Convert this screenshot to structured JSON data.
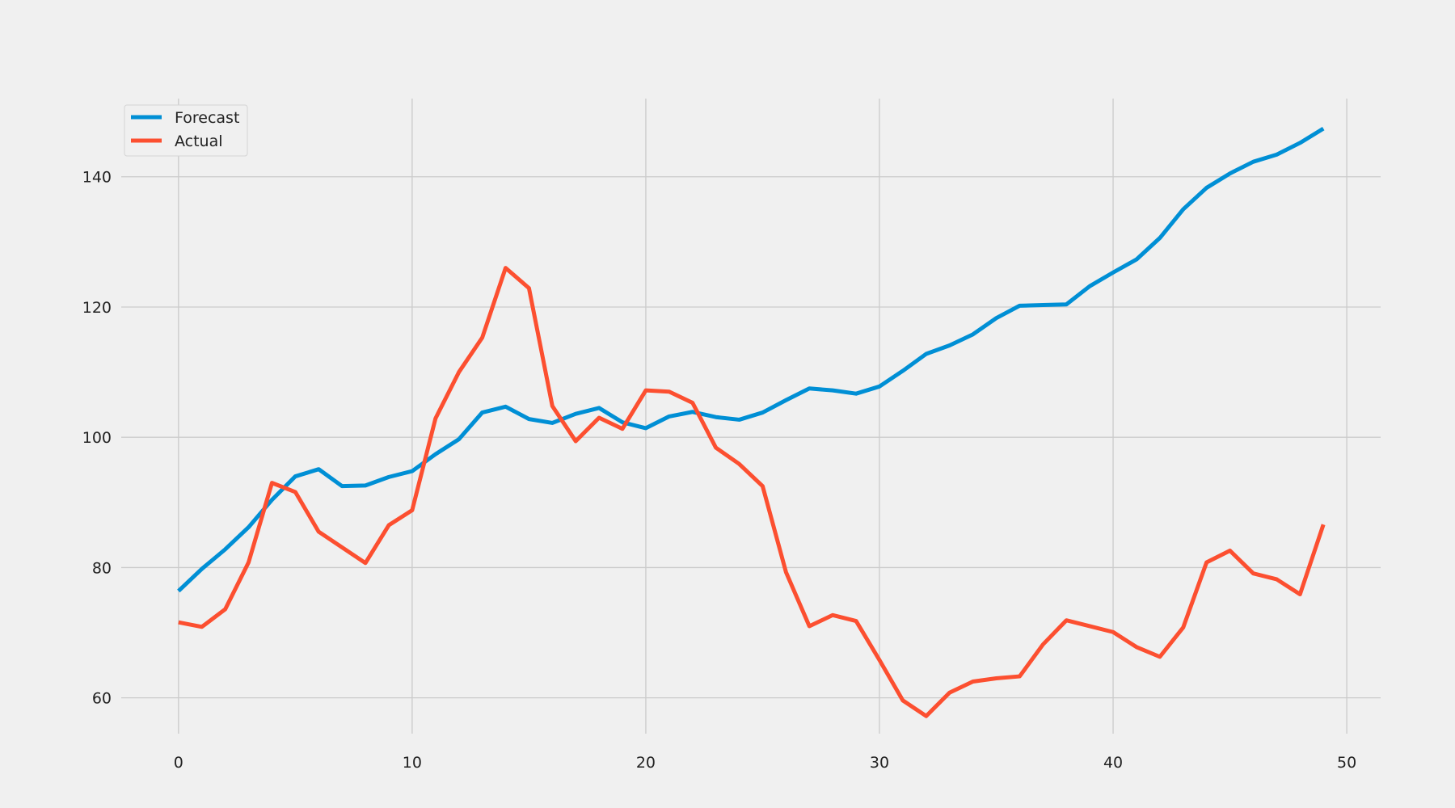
{
  "chart_data": {
    "type": "line",
    "title": "",
    "xlabel": "",
    "ylabel": "",
    "xlim": [
      -2.45,
      51.45
    ],
    "ylim": [
      54.5,
      152
    ],
    "xticks": [
      0,
      10,
      20,
      30,
      40,
      50
    ],
    "yticks": [
      60,
      80,
      100,
      120,
      140
    ],
    "grid": true,
    "legend_position": "top-left",
    "x": [
      0,
      1,
      2,
      3,
      4,
      5,
      6,
      7,
      8,
      9,
      10,
      11,
      12,
      13,
      14,
      15,
      16,
      17,
      18,
      19,
      20,
      21,
      22,
      23,
      24,
      25,
      26,
      27,
      28,
      29,
      30,
      31,
      32,
      33,
      34,
      35,
      36,
      37,
      38,
      39,
      40,
      41,
      42,
      43,
      44,
      45,
      46,
      47,
      48,
      49
    ],
    "series": [
      {
        "name": "Forecast",
        "color": "#008fd5",
        "values": [
          76.4,
          79.8,
          82.8,
          86.2,
          90.4,
          94.0,
          95.1,
          92.5,
          92.6,
          93.9,
          94.8,
          97.4,
          99.7,
          103.8,
          104.7,
          102.8,
          102.2,
          103.6,
          104.5,
          102.3,
          101.4,
          103.2,
          103.9,
          103.1,
          102.7,
          103.8,
          105.7,
          107.5,
          107.2,
          106.7,
          107.8,
          110.2,
          112.8,
          114.1,
          115.8,
          118.3,
          120.2,
          120.3,
          120.4,
          123.2,
          125.3,
          127.3,
          130.6,
          135.0,
          138.3,
          140.5,
          142.3,
          143.4,
          145.2,
          147.4
        ]
      },
      {
        "name": "Actual",
        "color": "#fc4f30",
        "values": [
          71.6,
          70.9,
          73.6,
          80.8,
          93.0,
          91.6,
          85.5,
          83.1,
          80.7,
          86.5,
          88.8,
          102.9,
          110.0,
          115.3,
          126.0,
          122.9,
          104.8,
          99.4,
          103.0,
          101.3,
          107.2,
          107.0,
          105.3,
          98.4,
          95.9,
          92.5,
          79.3,
          71.0,
          72.7,
          71.8,
          65.8,
          59.6,
          57.2,
          60.8,
          62.5,
          63.0,
          63.3,
          68.2,
          71.9,
          71.0,
          70.1,
          67.8,
          66.3,
          70.8,
          80.8,
          82.6,
          79.1,
          78.2,
          75.9,
          86.6
        ]
      }
    ]
  }
}
